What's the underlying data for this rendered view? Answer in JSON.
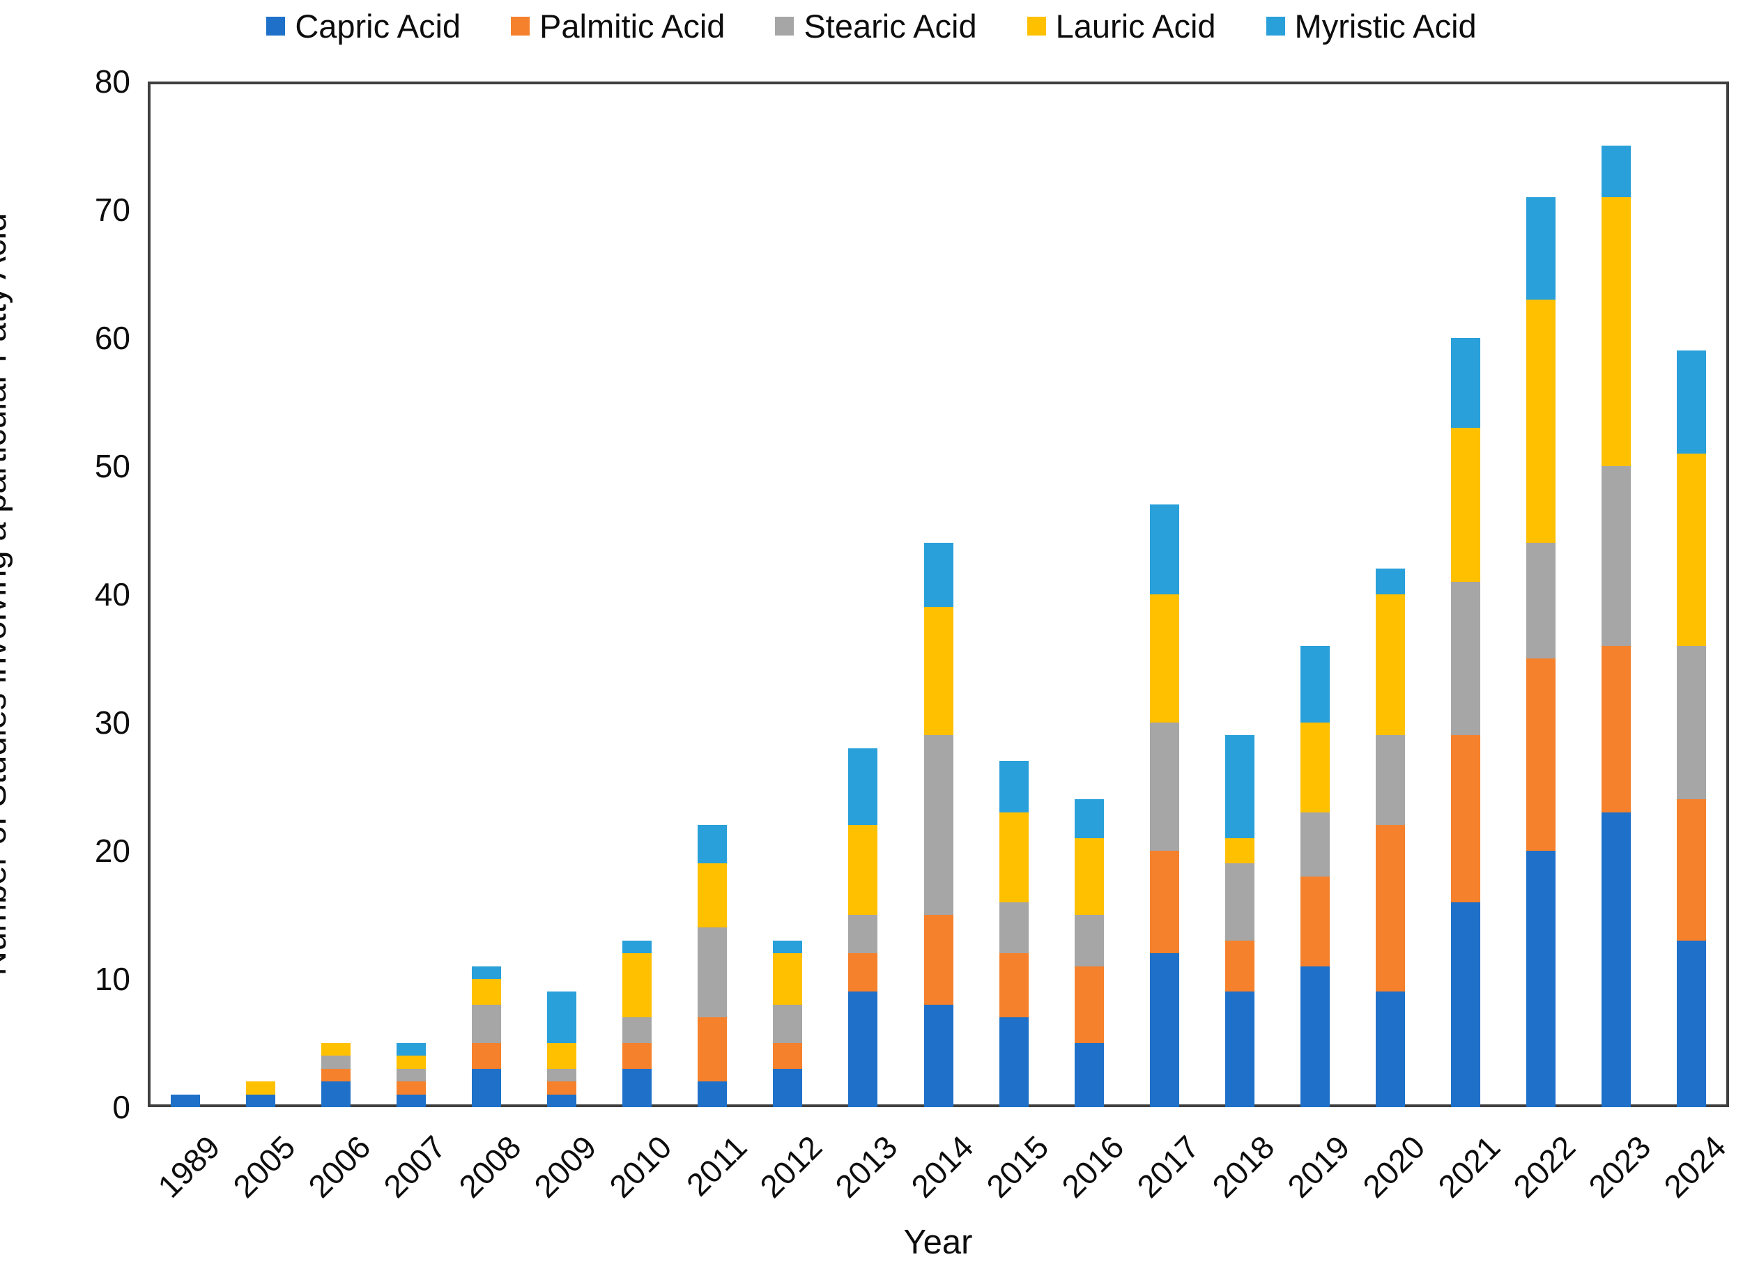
{
  "chart_data": {
    "type": "bar",
    "stacked": true,
    "title": "",
    "xlabel": "Year",
    "ylabel": "Number of Studies involving a particular Fatty Acid",
    "ylim": [
      0,
      80
    ],
    "ytick_step": 10,
    "grid": false,
    "legend_position": "top",
    "categories": [
      "1989",
      "2005",
      "2006",
      "2007",
      "2008",
      "2009",
      "2010",
      "2011",
      "2012",
      "2013",
      "2014",
      "2015",
      "2016",
      "2017",
      "2018",
      "2019",
      "2020",
      "2021",
      "2022",
      "2023",
      "2024"
    ],
    "series": [
      {
        "name": "Capric Acid",
        "color": "#1e70c8",
        "values": [
          1,
          1,
          2,
          1,
          3,
          1,
          3,
          2,
          3,
          9,
          8,
          7,
          5,
          12,
          9,
          11,
          9,
          16,
          20,
          23,
          13
        ]
      },
      {
        "name": "Palmitic Acid",
        "color": "#f5812c",
        "values": [
          0,
          0,
          1,
          1,
          2,
          1,
          2,
          5,
          2,
          3,
          7,
          5,
          6,
          8,
          4,
          7,
          13,
          13,
          15,
          13,
          11
        ]
      },
      {
        "name": "Stearic Acid",
        "color": "#a6a6a6",
        "values": [
          0,
          0,
          1,
          1,
          3,
          1,
          2,
          7,
          3,
          3,
          14,
          4,
          4,
          10,
          6,
          5,
          7,
          12,
          9,
          14,
          12
        ]
      },
      {
        "name": "Lauric Acid",
        "color": "#ffc000",
        "values": [
          0,
          1,
          1,
          1,
          2,
          2,
          5,
          5,
          4,
          7,
          10,
          7,
          6,
          10,
          2,
          7,
          11,
          12,
          19,
          21,
          15
        ]
      },
      {
        "name": "Myristic Acid",
        "color": "#29a0da",
        "values": [
          0,
          0,
          0,
          1,
          1,
          4,
          1,
          3,
          1,
          6,
          5,
          4,
          3,
          7,
          8,
          6,
          2,
          7,
          8,
          4,
          8
        ]
      }
    ],
    "totals": [
      1,
      2,
      5,
      5,
      11,
      9,
      13,
      22,
      13,
      28,
      44,
      27,
      24,
      47,
      29,
      36,
      42,
      60,
      71,
      75,
      59
    ],
    "axis_color": "#3f3f3f",
    "text_color": "#0d0d0d"
  }
}
